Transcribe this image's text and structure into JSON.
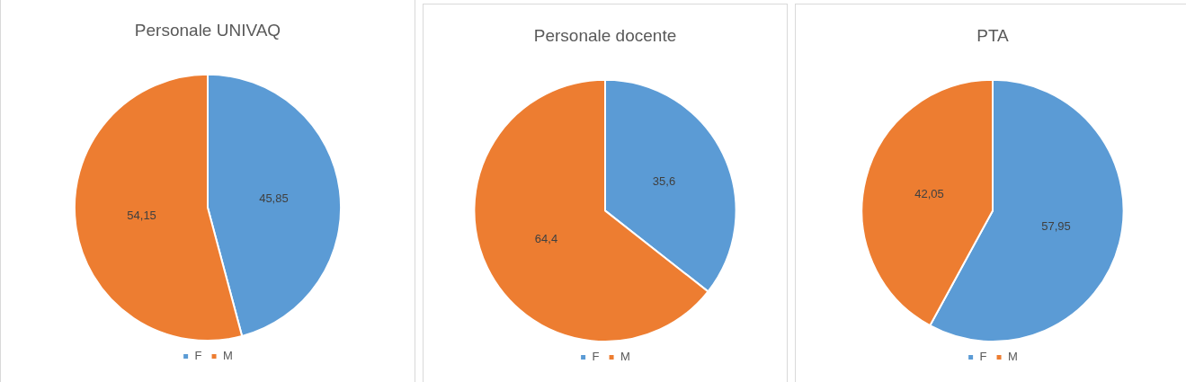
{
  "chart_data": [
    {
      "type": "pie",
      "title": "Personale UNIVAQ",
      "categories": [
        "F",
        "M"
      ],
      "values": [
        45.85,
        54.15
      ],
      "colors": [
        "#5b9bd5",
        "#ed7d31"
      ],
      "value_labels": [
        "45,85",
        "54,15"
      ],
      "legend": "bottom"
    },
    {
      "type": "pie",
      "title": "Personale docente",
      "categories": [
        "F",
        "M"
      ],
      "values": [
        35.6,
        64.4
      ],
      "colors": [
        "#5b9bd5",
        "#ed7d31"
      ],
      "value_labels": [
        "35,6",
        "64,4"
      ],
      "legend": "bottom"
    },
    {
      "type": "pie",
      "title": "PTA",
      "categories": [
        "F",
        "M"
      ],
      "values": [
        57.95,
        42.05
      ],
      "colors": [
        "#5b9bd5",
        "#ed7d31"
      ],
      "value_labels": [
        "57,95",
        "42,05"
      ],
      "legend": "bottom"
    }
  ]
}
